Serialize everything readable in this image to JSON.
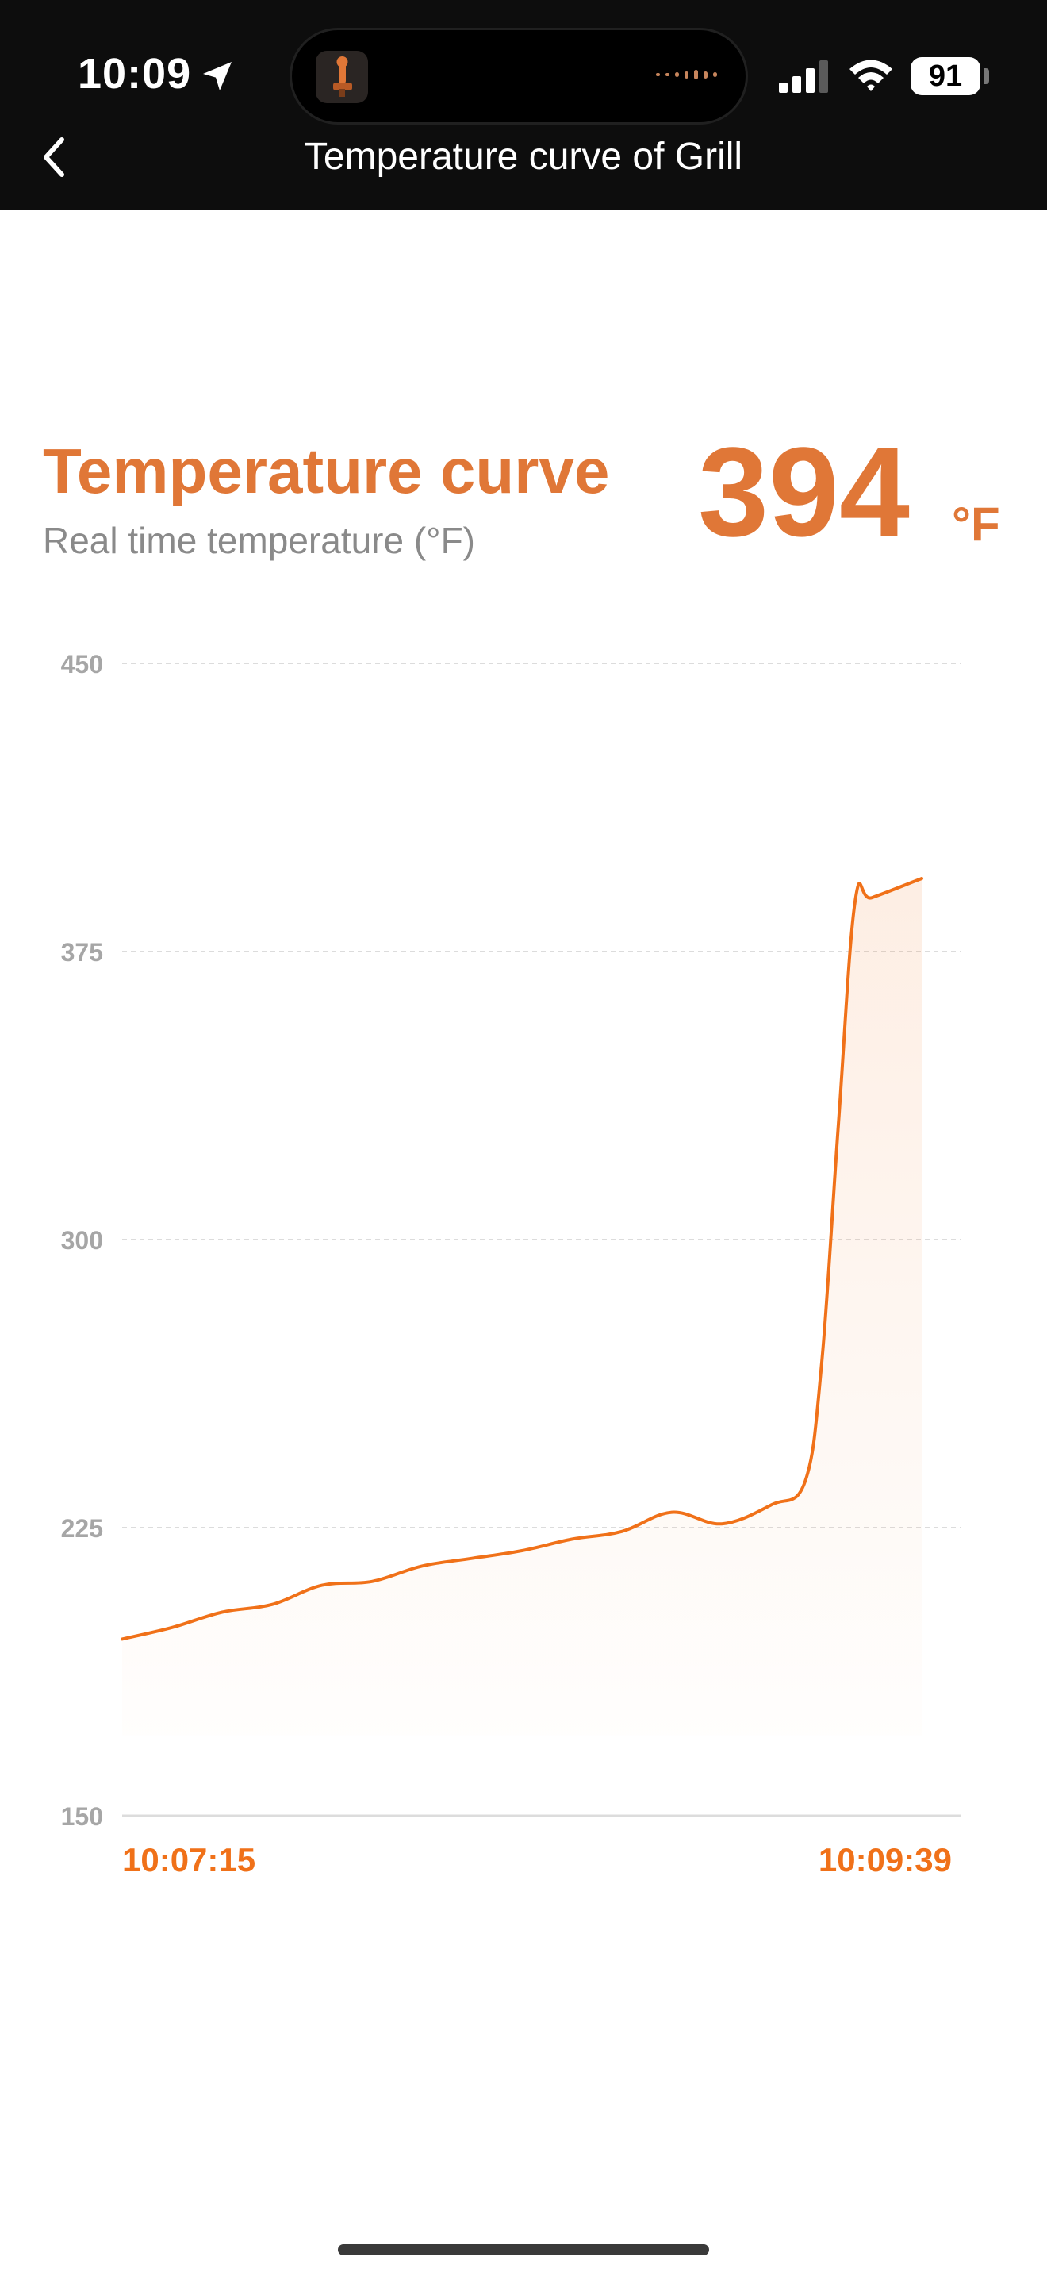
{
  "status_bar": {
    "time": "10:09",
    "battery": "91"
  },
  "nav": {
    "title": "Temperature curve of Grill"
  },
  "header": {
    "title": "Temperature curve",
    "subtitle": "Real time temperature (°F)",
    "current_value": "394",
    "unit": "°F"
  },
  "colors": {
    "accent": "#e07737",
    "line": "#f07119",
    "axis_text": "#a6a6a6"
  },
  "chart_data": {
    "type": "line",
    "xlabel": "",
    "ylabel": "",
    "ylim": [
      150,
      450
    ],
    "y_ticks": [
      450,
      375,
      300,
      225,
      150
    ],
    "x_start_label": "10:07:15",
    "x_end_label": "10:09:39",
    "x": [
      "10:07:15",
      "10:07:24",
      "10:07:33",
      "10:07:42",
      "10:07:51",
      "10:08:00",
      "10:08:09",
      "10:08:18",
      "10:08:27",
      "10:08:36",
      "10:08:45",
      "10:08:54",
      "10:09:03",
      "10:09:12",
      "10:09:18",
      "10:09:21",
      "10:09:24",
      "10:09:27",
      "10:09:30",
      "10:09:39"
    ],
    "values": [
      196,
      199,
      203,
      205,
      210,
      211,
      215,
      217,
      219,
      222,
      224,
      229,
      226,
      231,
      237,
      268,
      330,
      388,
      389,
      394
    ],
    "grid": true,
    "fill": "gradient"
  }
}
